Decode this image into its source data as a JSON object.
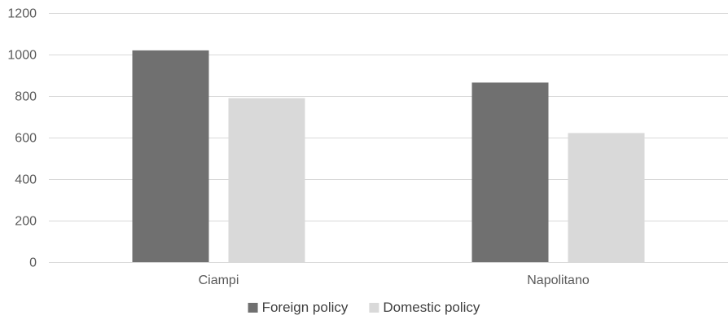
{
  "chart_data": {
    "type": "bar",
    "categories": [
      "Ciampi",
      "Napolitano"
    ],
    "series": [
      {
        "name": "Foreign policy",
        "values": [
          1020,
          865
        ],
        "color": "#707070"
      },
      {
        "name": "Domestic policy",
        "values": [
          790,
          622
        ],
        "color": "#d9d9d9"
      }
    ],
    "title": "",
    "xlabel": "",
    "ylabel": "",
    "ylim": [
      0,
      1200
    ],
    "yticks": [
      0,
      200,
      400,
      600,
      800,
      1000,
      1200
    ],
    "grid": true,
    "gridline_color": "#d9d9d9",
    "legend": "bottom"
  }
}
